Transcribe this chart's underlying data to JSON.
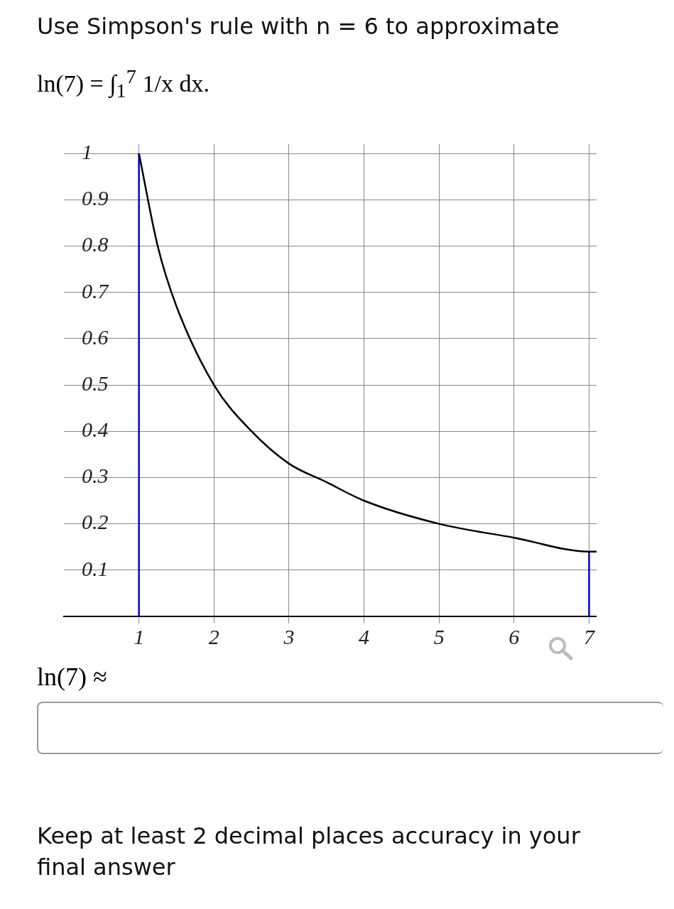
{
  "chart_data": {
    "type": "line",
    "title": "Use Simpson's rule with n = 6 to approximate",
    "subtitle": "ln(7) = ∫$_{1}$$^{7}$ 1/x dx.",
    "xlim": [
      0,
      7.1
    ],
    "xticks": [
      1,
      2,
      3,
      4,
      5,
      6,
      7
    ],
    "ylim": [
      0,
      1.02
    ],
    "yticks": [
      0.1,
      0.2,
      0.3,
      0.4,
      0.5,
      0.6,
      0.7,
      0.8,
      0.9,
      1
    ],
    "grid": true,
    "marker": "none",
    "line_style": "solid",
    "series": [
      {
        "color": "#000000",
        "x": [
          1,
          1.25,
          1.5,
          2,
          2.5,
          3,
          3.5,
          4,
          5,
          6,
          7,
          7.1
        ],
        "values": [
          1,
          0.8,
          0.67,
          0.5,
          0.4,
          0.33,
          0.29,
          0.25,
          0.2,
          0.17,
          0.14,
          0.14
        ]
      },
      {
        "color": "#0000dd",
        "x": [
          1,
          1
        ],
        "values": [
          0,
          1
        ]
      },
      {
        "color": "#0000dd",
        "x": [
          7,
          7
        ],
        "values": [
          0,
          0.14
        ]
      }
    ],
    "annotations": [
      "ln(7) ≈",
      "Keep at least 2 decimal places accuracy in your final answer"
    ]
  }
}
